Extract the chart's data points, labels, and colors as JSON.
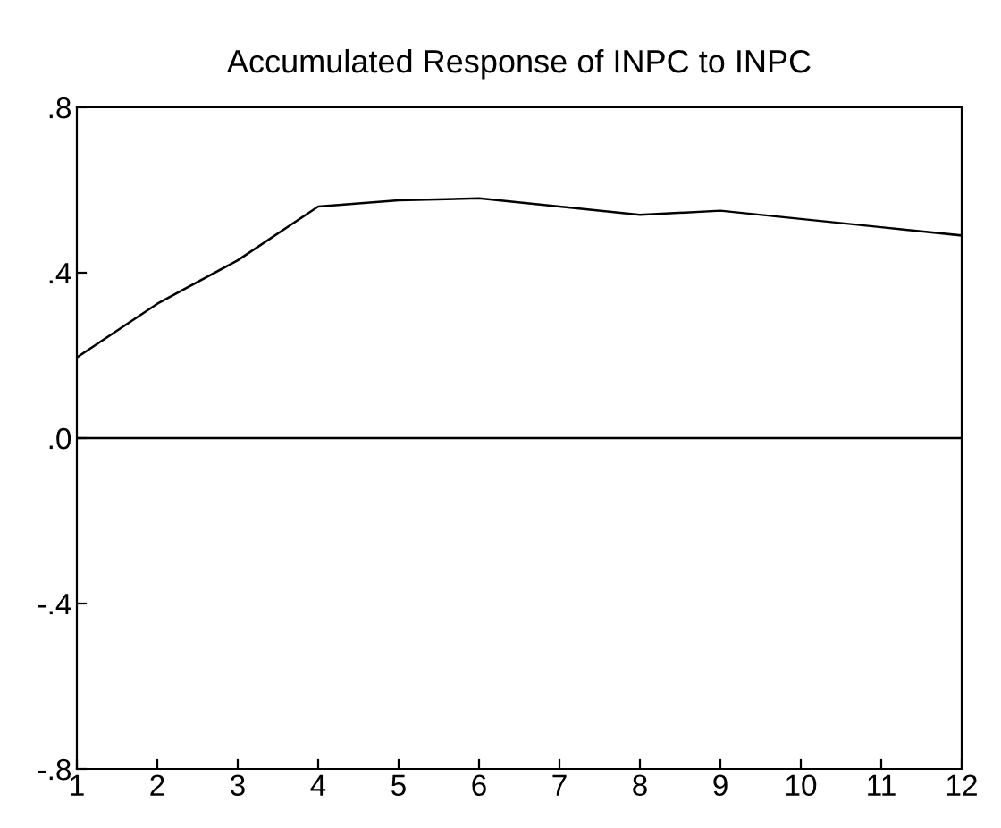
{
  "chart_data": {
    "type": "line",
    "title": "Accumulated Response of INPC to INPC",
    "x": [
      1,
      2,
      3,
      4,
      5,
      6,
      7,
      8,
      9,
      10,
      11,
      12
    ],
    "series": [
      {
        "color": "#000000",
        "values": [
          0.195,
          0.325,
          0.43,
          0.56,
          0.575,
          0.58,
          0.56,
          0.54,
          0.55,
          0.53,
          0.51,
          0.49
        ]
      }
    ],
    "xlim": [
      1,
      12
    ],
    "xticks": [
      1,
      2,
      3,
      4,
      5,
      6,
      7,
      8,
      9,
      10,
      11,
      12
    ],
    "ylim": [
      -0.8,
      0.8
    ],
    "yticks": [
      {
        "value": -0.8,
        "label": "-.8"
      },
      {
        "value": -0.4,
        "label": "-.4"
      },
      {
        "value": 0,
        "label": ".0"
      },
      {
        "value": 0.4,
        "label": ".4"
      },
      {
        "value": 0.8,
        "label": ".8"
      }
    ],
    "ref_lines": [
      {
        "axis": "y",
        "value": 0,
        "color": "#000000"
      }
    ],
    "grid": false,
    "legend": false,
    "marker": "none",
    "line_style": "solid"
  }
}
